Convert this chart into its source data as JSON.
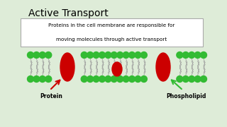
{
  "title": "Active Transport",
  "subtitle_line1": "Proteins in the cell membrane are responsible for",
  "subtitle_line2": "moving molecules through active transport",
  "bg_color": "#deecd8",
  "text_box_bg": "#ffffff",
  "green_color": "#33bb33",
  "red_color": "#cc0000",
  "label_protein": "Protein",
  "label_phospholipid": "Phospholipid",
  "title_fontsize": 10,
  "text_fontsize": 5.2,
  "label_fontsize": 5.5
}
